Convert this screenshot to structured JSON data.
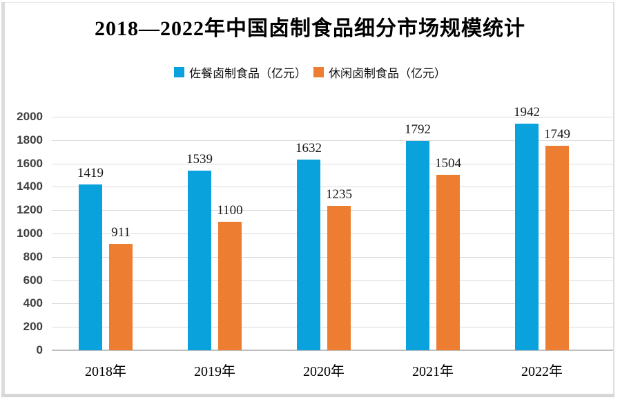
{
  "title": "2018—2022年中国卤制食品细分市场规模统计",
  "colors": {
    "series1": "#0AA2DC",
    "series2": "#ED7D31",
    "gridline": "#D9D9D9",
    "axisline": "#BFBFBF",
    "ytick_text": "#3F3F3F",
    "frame": "#DCDCDC"
  },
  "chart_data": {
    "type": "bar",
    "title": "2018—2022年中国卤制食品细分市场规模统计",
    "categories": [
      "2018年",
      "2019年",
      "2020年",
      "2021年",
      "2022年"
    ],
    "series": [
      {
        "name": "佐餐卤制食品（亿元）",
        "color": "#0AA2DC",
        "values": [
          1419,
          1539,
          1632,
          1792,
          1942
        ]
      },
      {
        "name": "休闲卤制食品（亿元）",
        "color": "#ED7D31",
        "values": [
          911,
          1100,
          1235,
          1504,
          1749
        ]
      }
    ],
    "xlabel": "",
    "ylabel": "",
    "ylim": [
      0,
      2000
    ],
    "yticks": [
      0,
      200,
      400,
      600,
      800,
      1000,
      1200,
      1400,
      1600,
      1800,
      2000
    ],
    "grid": true,
    "legend_position": "top",
    "data_labels": true
  }
}
